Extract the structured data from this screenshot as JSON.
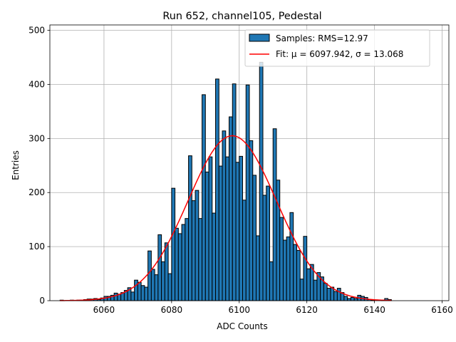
{
  "chart_data": {
    "type": "bar",
    "title": "Run 652, channel105, Pedestal",
    "xlabel": "ADC Counts",
    "ylabel": "Entries",
    "xlim": [
      6044,
      6162
    ],
    "ylim": [
      0,
      510
    ],
    "xticks": [
      6060,
      6080,
      6100,
      6120,
      6140,
      6160
    ],
    "yticks": [
      0,
      100,
      200,
      300,
      400,
      500
    ],
    "grid": true,
    "legend_position": "top-right",
    "bin_width": 1,
    "bar_color": "#1f77b4",
    "fit_color": "#ff0000",
    "series": [
      {
        "name": "Samples: RMS=12.97",
        "bin_start": [
          6047,
          6048,
          6049,
          6050,
          6051,
          6052,
          6053,
          6054,
          6055,
          6056,
          6057,
          6058,
          6059,
          6060,
          6061,
          6062,
          6063,
          6064,
          6065,
          6066,
          6067,
          6068,
          6069,
          6070,
          6071,
          6072,
          6073,
          6074,
          6075,
          6076,
          6077,
          6078,
          6079,
          6080,
          6081,
          6082,
          6083,
          6084,
          6085,
          6086,
          6087,
          6088,
          6089,
          6090,
          6091,
          6092,
          6093,
          6094,
          6095,
          6096,
          6097,
          6098,
          6099,
          6100,
          6101,
          6102,
          6103,
          6104,
          6105,
          6106,
          6107,
          6108,
          6109,
          6110,
          6111,
          6112,
          6113,
          6114,
          6115,
          6116,
          6117,
          6118,
          6119,
          6120,
          6121,
          6122,
          6123,
          6124,
          6125,
          6126,
          6127,
          6128,
          6129,
          6130,
          6131,
          6132,
          6133,
          6134,
          6135,
          6136,
          6137,
          6138,
          6139,
          6140,
          6141,
          6142,
          6143,
          6144
        ],
        "counts": [
          1,
          0,
          0,
          1,
          0,
          1,
          1,
          2,
          3,
          3,
          4,
          2,
          5,
          8,
          8,
          10,
          14,
          12,
          15,
          19,
          24,
          16,
          38,
          34,
          28,
          25,
          92,
          58,
          48,
          122,
          72,
          107,
          50,
          208,
          134,
          124,
          141,
          152,
          268,
          185,
          204,
          152,
          381,
          238,
          266,
          162,
          410,
          249,
          314,
          266,
          340,
          401,
          256,
          267,
          186,
          399,
          296,
          232,
          120,
          441,
          195,
          212,
          72,
          318,
          223,
          154,
          112,
          118,
          163,
          104,
          93,
          40,
          119,
          59,
          67,
          38,
          52,
          44,
          32,
          23,
          25,
          17,
          23,
          15,
          8,
          4,
          6,
          4,
          10,
          8,
          6,
          2,
          1,
          0,
          0,
          1,
          4,
          2
        ]
      },
      {
        "name": "Fit: μ = 6097.942, σ = 13.068",
        "type": "gaussian",
        "mu": 6097.942,
        "sigma": 13.068,
        "amplitude": 305,
        "x_range": [
          6047,
          6145
        ]
      }
    ]
  }
}
